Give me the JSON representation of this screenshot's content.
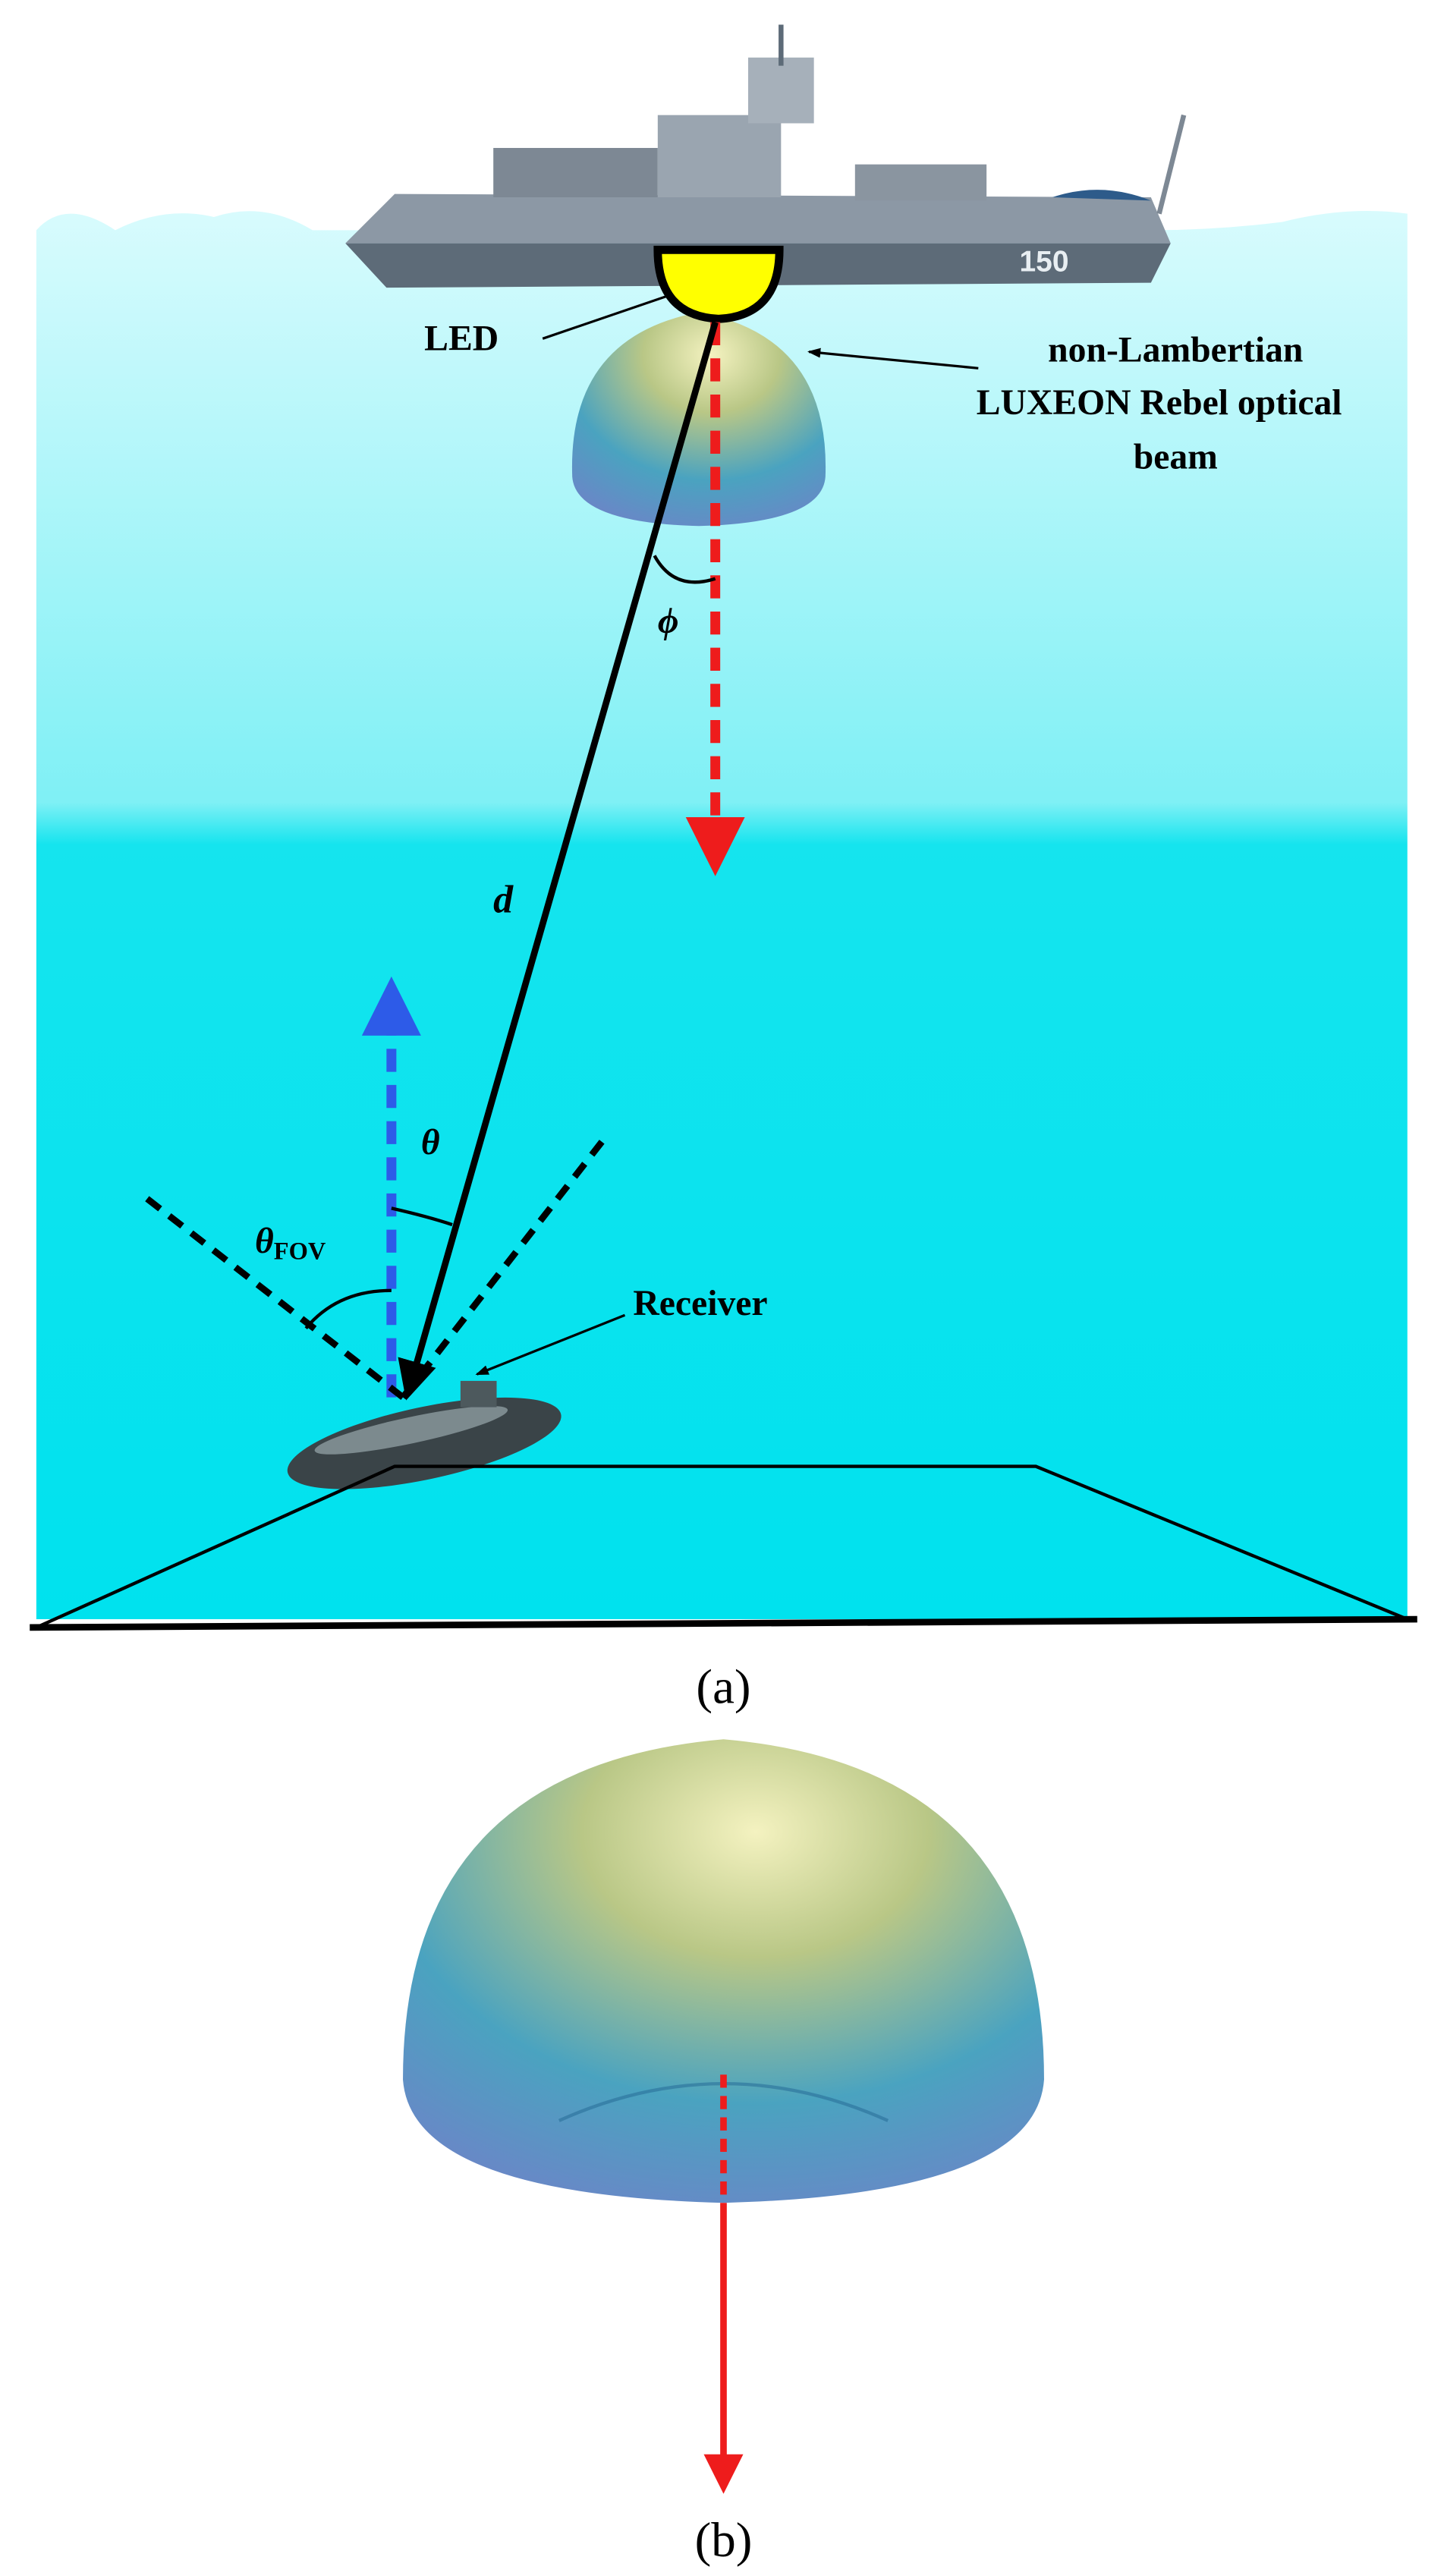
{
  "panel_a": {
    "led_label": "LED",
    "beam_label": [
      "non-Lambertian",
      "LUXEON Rebel  optical",
      "beam"
    ],
    "ship_number": "150",
    "phi": "ϕ",
    "distance": "d",
    "theta": "θ",
    "fov": {
      "symbol": "θ",
      "subscript": "FOV"
    },
    "receiver": "Receiver",
    "caption": "(a)"
  },
  "panel_b": {
    "caption": "(b)"
  }
}
